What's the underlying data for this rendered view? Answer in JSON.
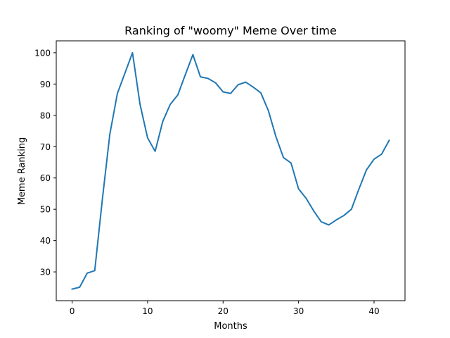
{
  "chart_data": {
    "type": "line",
    "title": "Ranking of \"woomy\" Meme Over time",
    "xlabel": "Months",
    "ylabel": "Meme Ranking",
    "xlim": [
      -2.1,
      44.1
    ],
    "ylim": [
      20.8,
      103.8
    ],
    "xticks": [
      0,
      10,
      20,
      30,
      40
    ],
    "yticks": [
      30,
      40,
      50,
      60,
      70,
      80,
      90,
      100
    ],
    "grid": false,
    "line_color": "#1f77b4",
    "series": [
      {
        "x": [
          0,
          1,
          2,
          3,
          4,
          5,
          6,
          7,
          8,
          9,
          10,
          11,
          12,
          13,
          14,
          15,
          16,
          17,
          18,
          19,
          20,
          21,
          22,
          23,
          24,
          25,
          26,
          27,
          28,
          29,
          30,
          31,
          32,
          33,
          34,
          35,
          36,
          37,
          38,
          39,
          40,
          41,
          42
        ],
        "values": [
          24.5,
          25.1,
          29.6,
          30.4,
          53,
          74,
          87,
          93.5,
          100,
          83.5,
          72.8,
          68.5,
          78,
          83.5,
          86.5,
          93,
          99.4,
          92.3,
          91.8,
          90.4,
          87.5,
          87,
          89.8,
          90.6,
          89,
          87.2,
          81.5,
          73.2,
          66.5,
          64.8,
          56.5,
          53.5,
          49.5,
          46,
          45,
          46.6,
          48,
          50,
          56.5,
          62.6,
          66,
          67.6,
          72
        ]
      }
    ]
  }
}
